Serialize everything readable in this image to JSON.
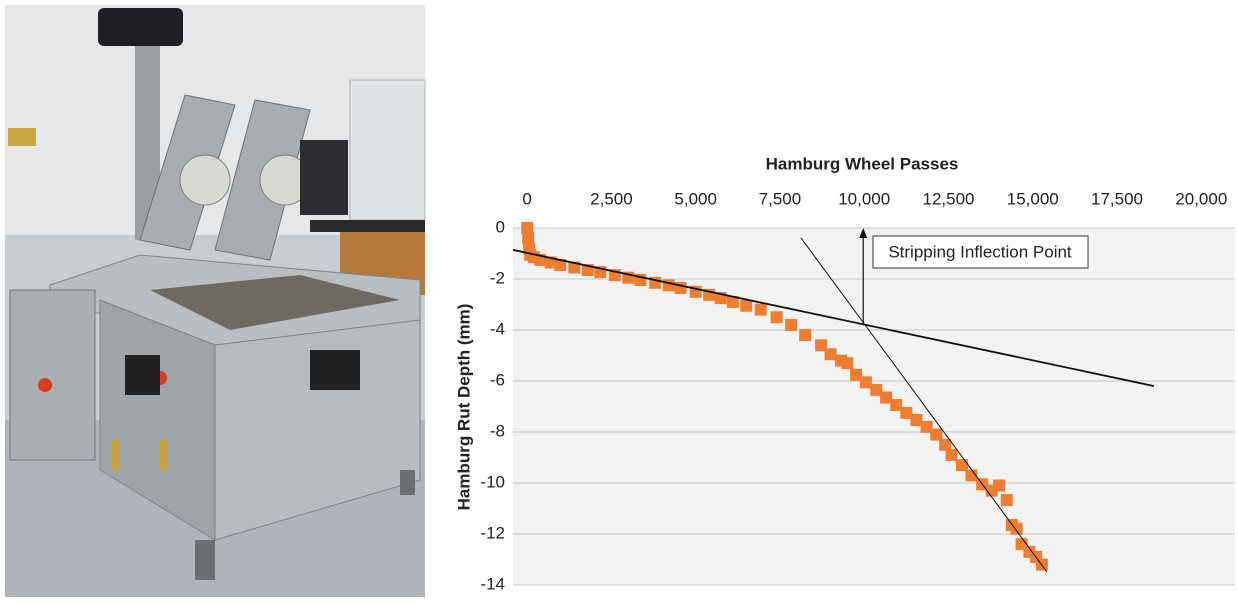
{
  "chart_data": {
    "type": "scatter",
    "x_label": "Hamburg Wheel Passes",
    "y_label": "Hamburg Rut Depth (mm)",
    "color": "#ed7d31",
    "xlim": [
      -420,
      21000
    ],
    "ylim": [
      -14,
      0
    ],
    "xticks": [
      0,
      {
        "value": 2500,
        "label": "2,500"
      },
      {
        "value": 5000,
        "label": "5,000"
      },
      {
        "value": 7500,
        "label": "7,500"
      },
      {
        "value": 10000,
        "label": "10,000"
      },
      {
        "value": 12500,
        "label": "12,500"
      },
      {
        "value": 15000,
        "label": "15,000"
      },
      {
        "value": 17500,
        "label": "17,500"
      },
      {
        "value": 20000,
        "label": "20,000"
      }
    ],
    "yticks": [
      0,
      -2,
      -4,
      -6,
      -8,
      -10,
      -12,
      -14
    ],
    "grid": true,
    "x": [
      0,
      30,
      60,
      90,
      200,
      390,
      700,
      980,
      1400,
      1800,
      2170,
      2600,
      3000,
      3360,
      3800,
      4200,
      4550,
      5000,
      5400,
      5740,
      6100,
      6500,
      6930,
      7400,
      7830,
      8250,
      8720,
      9000,
      9310,
      9500,
      9760,
      10050,
      10360,
      10650,
      10950,
      11250,
      11550,
      11850,
      12140,
      12400,
      12590,
      12900,
      13180,
      13500,
      13780,
      14000,
      14230,
      14380,
      14520,
      14670,
      14900,
      15100,
      15270
    ],
    "y": [
      0,
      -0.4,
      -0.8,
      -1.05,
      -1.15,
      -1.25,
      -1.35,
      -1.45,
      -1.55,
      -1.65,
      -1.73,
      -1.85,
      -1.95,
      -2.04,
      -2.15,
      -2.25,
      -2.35,
      -2.5,
      -2.62,
      -2.75,
      -2.9,
      -3.05,
      -3.2,
      -3.5,
      -3.8,
      -4.2,
      -4.6,
      -4.95,
      -5.2,
      -5.3,
      -5.76,
      -6.05,
      -6.35,
      -6.65,
      -6.94,
      -7.25,
      -7.53,
      -7.8,
      -8.1,
      -8.5,
      -8.9,
      -9.3,
      -9.7,
      -10.05,
      -10.3,
      -10.1,
      -10.67,
      -11.65,
      -11.8,
      -12.4,
      -12.7,
      -12.9,
      -13.2
    ],
    "trendlines": [
      {
        "x": [
          -420,
          18600
        ],
        "y": [
          -0.86,
          -6.2
        ]
      },
      {
        "x": [
          8125,
          15420
        ],
        "y": [
          -0.39,
          -13.49
        ]
      }
    ],
    "annotation": {
      "text": "Stripping Inflection Point",
      "x": 9970,
      "y": -3.8
    }
  }
}
